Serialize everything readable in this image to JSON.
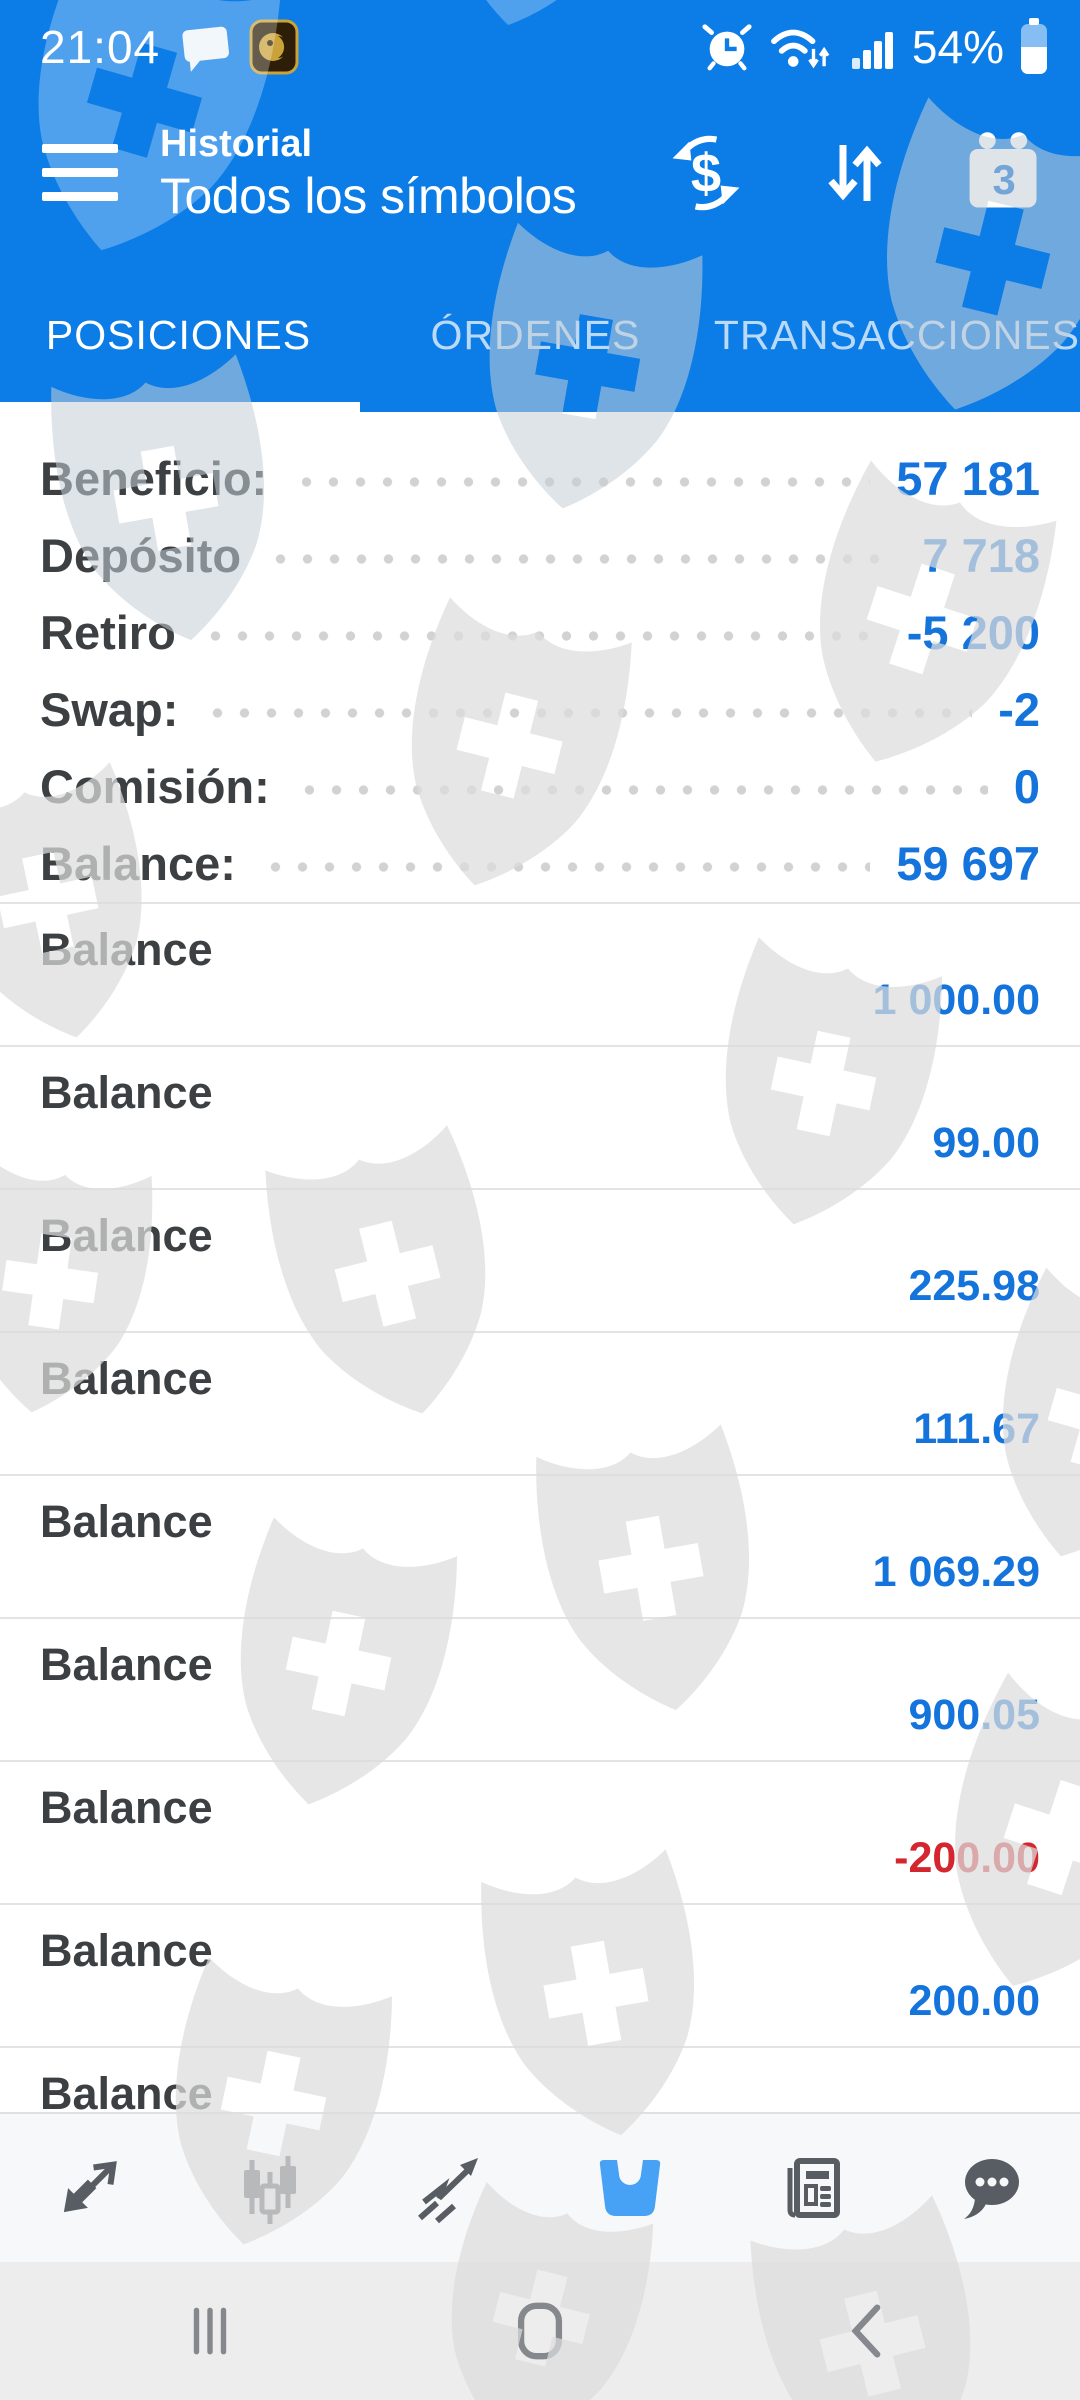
{
  "status_bar": {
    "time": "21:04",
    "battery": "54%"
  },
  "app_bar": {
    "title": "Historial",
    "subtitle": "Todos los símbolos",
    "calendar_badge": "3",
    "action_icons": [
      "currency-exchange-icon",
      "sort-arrows-icon",
      "calendar-icon"
    ]
  },
  "tabs": [
    {
      "label": "POSICIONES",
      "active": true
    },
    {
      "label": "ÓRDENES",
      "active": false
    },
    {
      "label": "TRANSACCIONES",
      "active": false
    }
  ],
  "summary": [
    {
      "label": "Beneficio:",
      "value": "57 181"
    },
    {
      "label": "Depósito",
      "value": "7 718"
    },
    {
      "label": "Retiro",
      "value": "-5 200"
    },
    {
      "label": "Swap:",
      "value": "-2"
    },
    {
      "label": "Comisión:",
      "value": "0"
    },
    {
      "label": "Balance:",
      "value": "59 697"
    }
  ],
  "transactions": [
    {
      "label": "Balance",
      "amount": "1 000.00",
      "negative": false
    },
    {
      "label": "Balance",
      "amount": "99.00",
      "negative": false
    },
    {
      "label": "Balance",
      "amount": "225.98",
      "negative": false
    },
    {
      "label": "Balance",
      "amount": "111.67",
      "negative": false
    },
    {
      "label": "Balance",
      "amount": "1 069.29",
      "negative": false
    },
    {
      "label": "Balance",
      "amount": "900.05",
      "negative": false
    },
    {
      "label": "Balance",
      "amount": "-200.00",
      "negative": true
    },
    {
      "label": "Balance",
      "amount": "200.00",
      "negative": false
    },
    {
      "label": "Balance",
      "amount": "",
      "negative": false
    }
  ],
  "toolbar": [
    {
      "name": "quotes-icon",
      "active": false
    },
    {
      "name": "charts-icon",
      "active": false
    },
    {
      "name": "trade-icon",
      "active": false
    },
    {
      "name": "history-icon",
      "active": true
    },
    {
      "name": "news-icon",
      "active": false
    },
    {
      "name": "chat-icon",
      "active": false
    }
  ],
  "nav_bar": [
    "recents-icon",
    "home-icon",
    "back-icon"
  ],
  "colors": {
    "header_blue": "#0c7ce6",
    "value_blue": "#1474dc",
    "active_tool_blue": "#47a1f4",
    "negative_red": "#d3262e",
    "label_gray": "#3c4043"
  }
}
